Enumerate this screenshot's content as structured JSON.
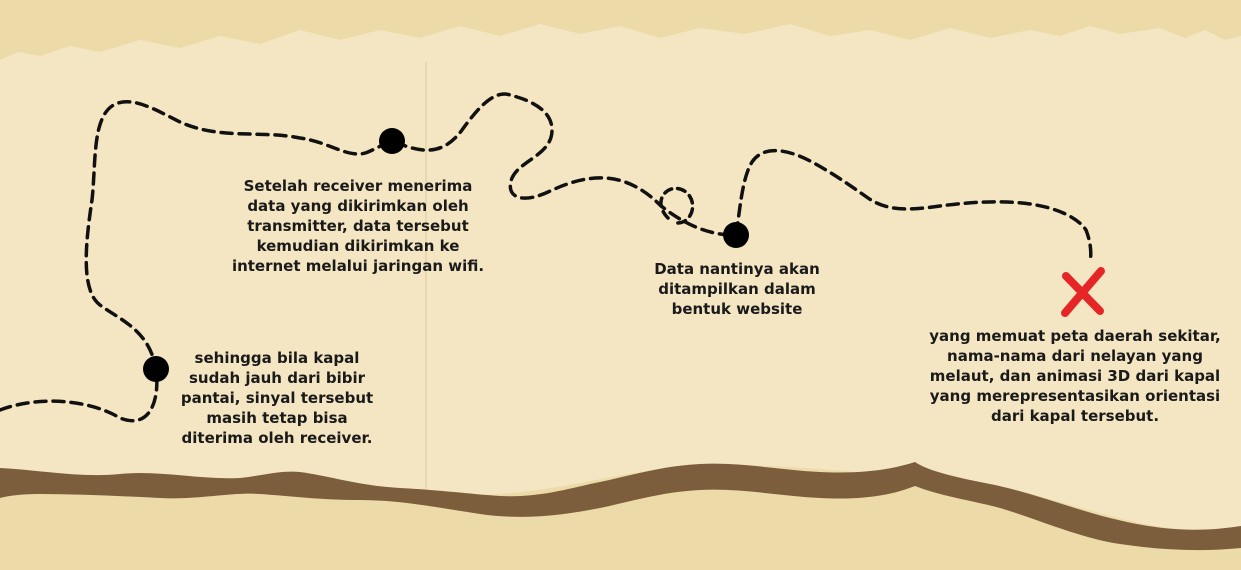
{
  "colors": {
    "parchment": "#f4e6c3",
    "torn_edge": "#ecdba8",
    "brown_edge": "#7d5e3c",
    "path": "#111111",
    "marker": "#000000",
    "x_mark": "#e52526"
  },
  "captions": {
    "receiver": {
      "lines": [
        "Setelah receiver menerima",
        "data yang dikirimkan oleh",
        "transmitter, data tersebut",
        "kemudian dikirimkan ke",
        "internet melalui jaringan wifi."
      ]
    },
    "distance": {
      "lines": [
        "sehingga bila kapal",
        "sudah jauh dari bibir",
        "pantai, sinyal tersebut",
        "masih tetap bisa",
        "diterima oleh receiver."
      ]
    },
    "website": {
      "lines": [
        "Data nantinya akan",
        "ditampilkan dalam",
        "bentuk website"
      ]
    },
    "map": {
      "lines": [
        "yang memuat peta daerah sekitar,",
        "nama-nama dari nelayan yang",
        "melaut, dan animasi 3D dari kapal",
        "yang merepresentasikan orientasi",
        "dari kapal tersebut."
      ]
    }
  },
  "icons": {
    "waypoint": "filled-circle-icon",
    "destination": "red-x-mark-icon"
  }
}
